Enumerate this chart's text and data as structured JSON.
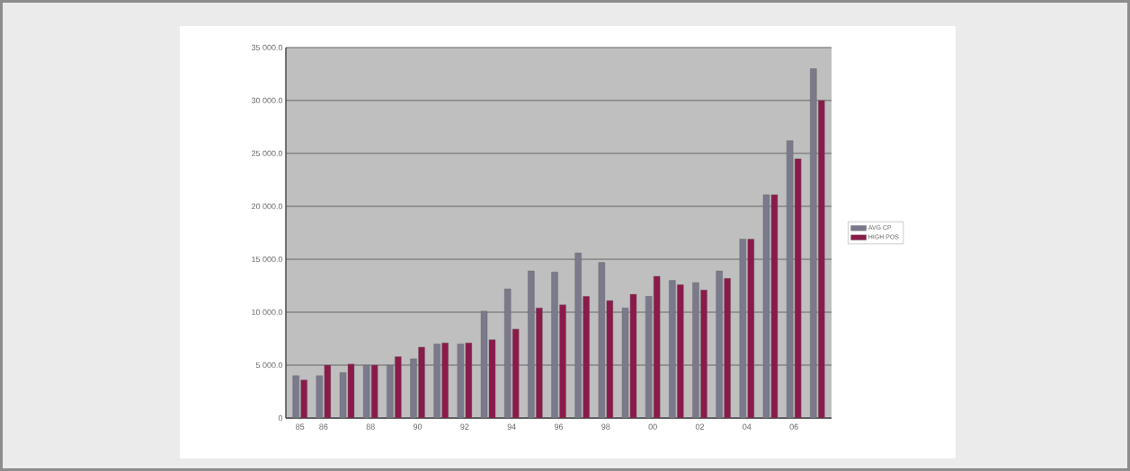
{
  "chart_data": {
    "type": "bar",
    "categories": [
      "85",
      "86",
      null,
      "88",
      null,
      "90",
      null,
      "92",
      null,
      "94",
      null,
      "96",
      null,
      "98",
      null,
      "00",
      null,
      "02",
      null,
      "04",
      null,
      "06",
      null
    ],
    "series": [
      {
        "name": "AVG CP",
        "color": "#7a7a8c",
        "values": [
          4000,
          4000,
          4300,
          5000,
          5000,
          5600,
          7000,
          7000,
          10100,
          12200,
          13900,
          13800,
          15600,
          14700,
          10400,
          11500,
          13000,
          12800,
          13900,
          16900,
          21100,
          26200,
          33000
        ]
      },
      {
        "name": "HIGH POS",
        "color": "#8b1a4a",
        "values": [
          3600,
          5000,
          5100,
          5000,
          5800,
          6700,
          7100,
          7100,
          7400,
          8400,
          10400,
          10700,
          11500,
          11100,
          11700,
          13400,
          12600,
          12100,
          13200,
          16900,
          21100,
          24500,
          30000
        ]
      }
    ],
    "ylim": [
      0,
      35000
    ],
    "yticks": [
      0,
      {
        "value": 5000,
        "label": "5 000.0"
      },
      {
        "value": 10000,
        "label": "10 000.0"
      },
      {
        "value": 15000,
        "label": "15 000.0"
      },
      {
        "value": 20000,
        "label": "20 000.0"
      },
      {
        "value": 25000,
        "label": "25 000.0"
      },
      {
        "value": 30000,
        "label": "30 000.0"
      },
      {
        "value": 35000,
        "label": "35 000.0"
      }
    ],
    "grid": "y",
    "legend": "right"
  }
}
